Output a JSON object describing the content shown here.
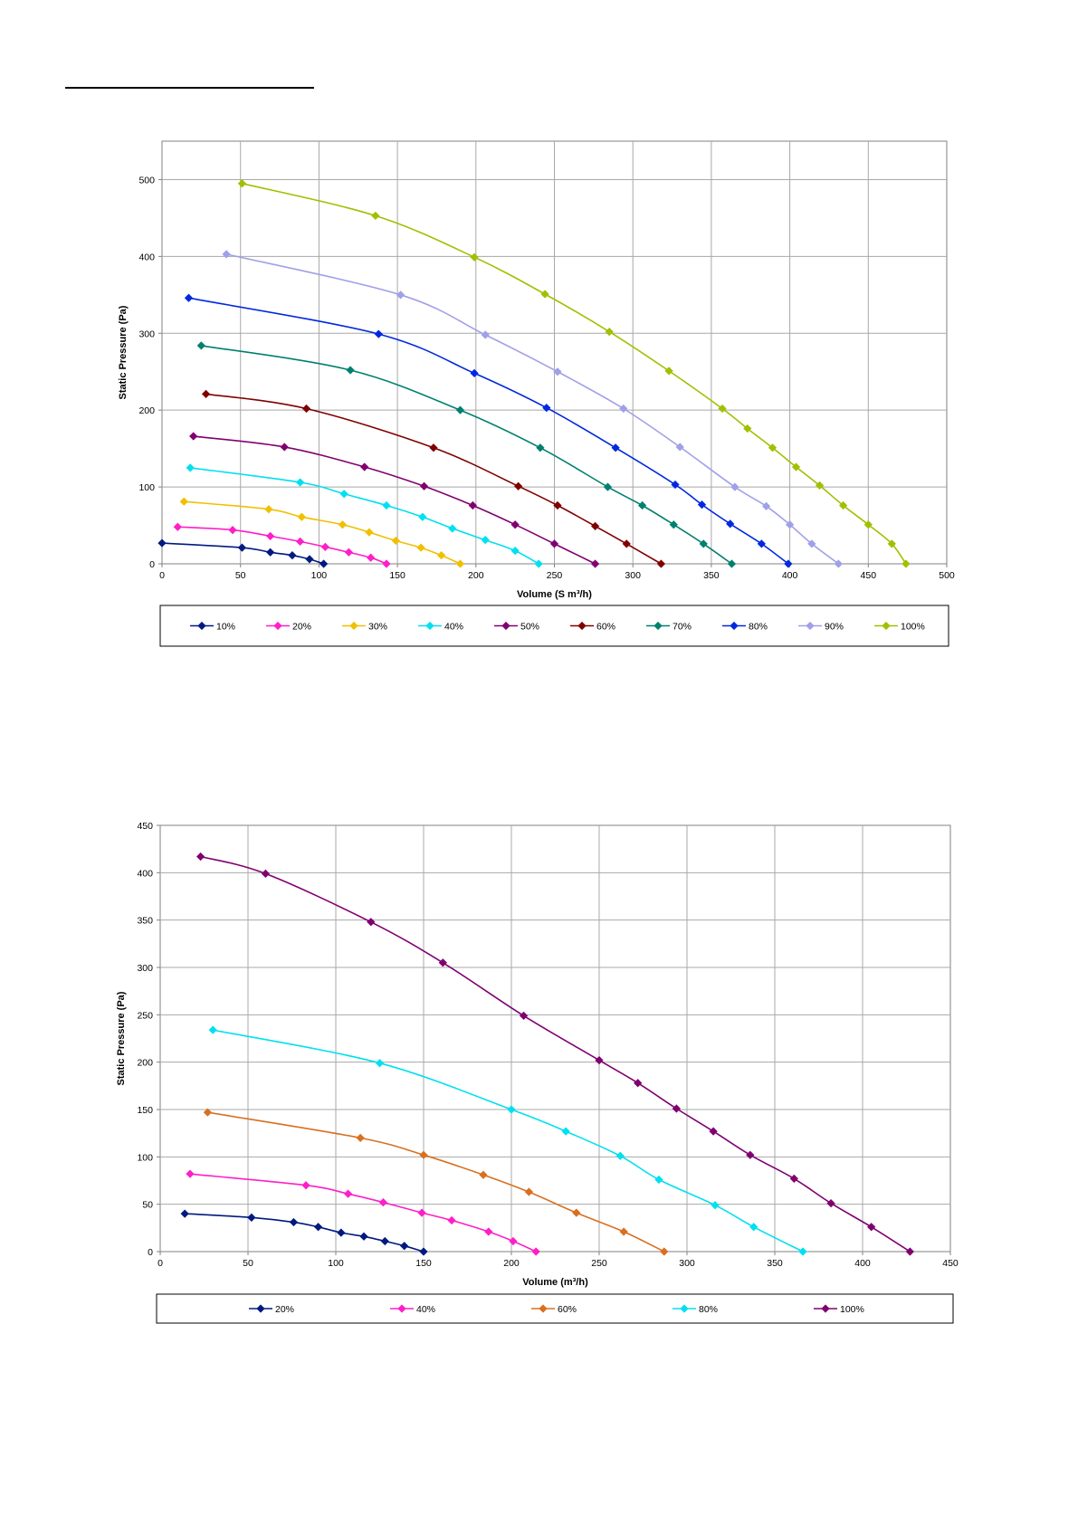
{
  "chart_data": [
    {
      "type": "line",
      "title": "",
      "xlabel": "Volume  (S m³/h)",
      "ylabel": "Static Pressure (Pa)",
      "xlim": [
        0,
        500
      ],
      "ylim": [
        0,
        550
      ],
      "xticks": [
        0,
        50,
        100,
        150,
        200,
        250,
        300,
        350,
        400,
        450,
        500
      ],
      "yticks": [
        0,
        100,
        200,
        300,
        400,
        500
      ],
      "grid": true,
      "legend_position": "bottom",
      "series": [
        {
          "name": "10%",
          "color": "#001a80",
          "points": [
            [
              0,
              27
            ],
            [
              51,
              21
            ],
            [
              69,
              15
            ],
            [
              83,
              11
            ],
            [
              94,
              6
            ],
            [
              103,
              0
            ]
          ]
        },
        {
          "name": "20%",
          "color": "#ff1ec8",
          "points": [
            [
              10,
              48
            ],
            [
              45,
              44
            ],
            [
              69,
              36
            ],
            [
              88,
              29
            ],
            [
              104,
              22
            ],
            [
              119,
              15
            ],
            [
              133,
              8
            ],
            [
              143,
              0
            ]
          ]
        },
        {
          "name": "30%",
          "color": "#f0c000",
          "points": [
            [
              14,
              81
            ],
            [
              68,
              71
            ],
            [
              89,
              61
            ],
            [
              115,
              51
            ],
            [
              132,
              41
            ],
            [
              149,
              30
            ],
            [
              165,
              21
            ],
            [
              178,
              11
            ],
            [
              190,
              0
            ]
          ]
        },
        {
          "name": "40%",
          "color": "#00e0f0",
          "points": [
            [
              18,
              125
            ],
            [
              88,
              106
            ],
            [
              116,
              91
            ],
            [
              143,
              76
            ],
            [
              166,
              61
            ],
            [
              185,
              46
            ],
            [
              206,
              31
            ],
            [
              225,
              17
            ],
            [
              240,
              0
            ]
          ]
        },
        {
          "name": "50%",
          "color": "#800070",
          "points": [
            [
              20,
              166
            ],
            [
              78,
              152
            ],
            [
              129,
              126
            ],
            [
              167,
              101
            ],
            [
              198,
              76
            ],
            [
              225,
              51
            ],
            [
              250,
              26
            ],
            [
              276,
              0
            ]
          ]
        },
        {
          "name": "60%",
          "color": "#800000",
          "points": [
            [
              28,
              221
            ],
            [
              92,
              202
            ],
            [
              173,
              151
            ],
            [
              227,
              101
            ],
            [
              252,
              76
            ],
            [
              276,
              49
            ],
            [
              296,
              26
            ],
            [
              318,
              0
            ]
          ]
        },
        {
          "name": "70%",
          "color": "#008070",
          "points": [
            [
              25,
              284
            ],
            [
              120,
              252
            ],
            [
              190,
              200
            ],
            [
              241,
              151
            ],
            [
              284,
              100
            ],
            [
              306,
              76
            ],
            [
              326,
              51
            ],
            [
              345,
              26
            ],
            [
              363,
              0
            ]
          ]
        },
        {
          "name": "80%",
          "color": "#0028e0",
          "points": [
            [
              17,
              346
            ],
            [
              138,
              299
            ],
            [
              199,
              248
            ],
            [
              245,
              203
            ],
            [
              289,
              151
            ],
            [
              327,
              103
            ],
            [
              344,
              77
            ],
            [
              362,
              52
            ],
            [
              382,
              26
            ],
            [
              399,
              0
            ]
          ]
        },
        {
          "name": "90%",
          "color": "#a0a0e8",
          "points": [
            [
              41,
              403
            ],
            [
              152,
              350
            ],
            [
              206,
              298
            ],
            [
              252,
              250
            ],
            [
              294,
              202
            ],
            [
              330,
              152
            ],
            [
              365,
              100
            ],
            [
              385,
              75
            ],
            [
              400,
              51
            ],
            [
              414,
              26
            ],
            [
              431,
              0
            ]
          ]
        },
        {
          "name": "100%",
          "color": "#a0c000",
          "points": [
            [
              51,
              495
            ],
            [
              136,
              453
            ],
            [
              199,
              399
            ],
            [
              244,
              351
            ],
            [
              285,
              302
            ],
            [
              323,
              251
            ],
            [
              357,
              202
            ],
            [
              373,
              176
            ],
            [
              389,
              151
            ],
            [
              404,
              126
            ],
            [
              419,
              102
            ],
            [
              434,
              76
            ],
            [
              450,
              51
            ],
            [
              465,
              26
            ],
            [
              474,
              0
            ]
          ]
        }
      ]
    },
    {
      "type": "line",
      "title": "",
      "xlabel": "Volume  (m³/h)",
      "ylabel": "Static Pressure (Pa)",
      "xlim": [
        0,
        450
      ],
      "ylim": [
        0,
        450
      ],
      "xticks": [
        0,
        50,
        100,
        150,
        200,
        250,
        300,
        350,
        400,
        450
      ],
      "yticks": [
        0,
        50,
        100,
        150,
        200,
        250,
        300,
        350,
        400,
        450
      ],
      "grid": true,
      "legend_position": "bottom",
      "series": [
        {
          "name": "20%",
          "color": "#001a80",
          "points": [
            [
              14,
              40
            ],
            [
              52,
              36
            ],
            [
              76,
              31
            ],
            [
              90,
              26
            ],
            [
              103,
              20
            ],
            [
              116,
              16
            ],
            [
              128,
              11
            ],
            [
              139,
              6
            ],
            [
              150,
              0
            ]
          ]
        },
        {
          "name": "40%",
          "color": "#ff1ec8",
          "points": [
            [
              17,
              82
            ],
            [
              83,
              70
            ],
            [
              107,
              61
            ],
            [
              127,
              52
            ],
            [
              149,
              41
            ],
            [
              166,
              33
            ],
            [
              187,
              21
            ],
            [
              201,
              11
            ],
            [
              214,
              0
            ]
          ]
        },
        {
          "name": "60%",
          "color": "#d87020",
          "points": [
            [
              27,
              147
            ],
            [
              114,
              120
            ],
            [
              150,
              102
            ],
            [
              184,
              81
            ],
            [
              210,
              63
            ],
            [
              237,
              41
            ],
            [
              264,
              21
            ],
            [
              287,
              0
            ]
          ]
        },
        {
          "name": "80%",
          "color": "#00e0f0",
          "points": [
            [
              30,
              234
            ],
            [
              125,
              199
            ],
            [
              200,
              150
            ],
            [
              231,
              127
            ],
            [
              262,
              101
            ],
            [
              284,
              76
            ],
            [
              316,
              49
            ],
            [
              338,
              26
            ],
            [
              366,
              0
            ]
          ]
        },
        {
          "name": "100%",
          "color": "#800070",
          "points": [
            [
              23,
              417
            ],
            [
              60,
              399
            ],
            [
              120,
              348
            ],
            [
              161,
              305
            ],
            [
              207,
              249
            ],
            [
              250,
              202
            ],
            [
              272,
              178
            ],
            [
              294,
              151
            ],
            [
              315,
              127
            ],
            [
              336,
              102
            ],
            [
              361,
              77
            ],
            [
              382,
              51
            ],
            [
              405,
              26
            ],
            [
              427,
              0
            ]
          ]
        }
      ]
    }
  ]
}
